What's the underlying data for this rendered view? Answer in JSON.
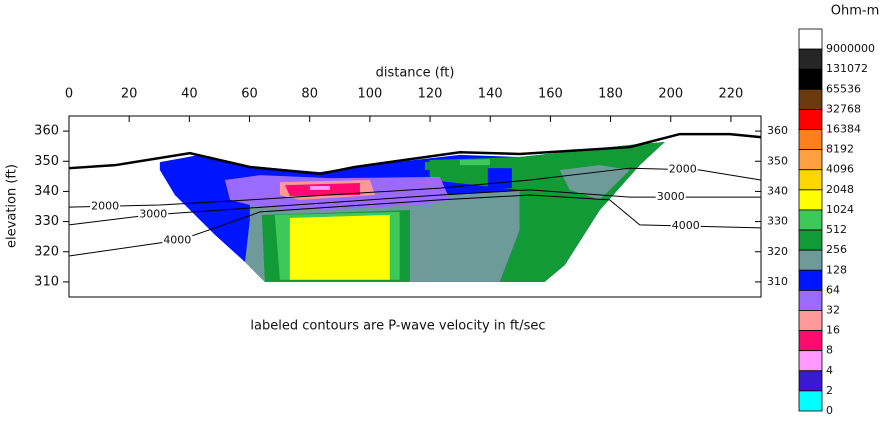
{
  "chart_data": {
    "type": "contour",
    "x_label": "distance (ft)",
    "y_label": "elevation (ft)",
    "annotation": "labeled contours are P-wave velocity in ft/sec",
    "xlim": [
      0,
      230
    ],
    "xticks": [
      0,
      20,
      40,
      60,
      80,
      100,
      120,
      140,
      160,
      180,
      200,
      220
    ],
    "ylim": [
      305,
      365
    ],
    "yticks": [
      310,
      320,
      330,
      340,
      350,
      360
    ],
    "colorbar": {
      "title": "Ohm-m",
      "levels": [
        9000000,
        131072,
        65536,
        32768,
        16384,
        8192,
        4096,
        2048,
        1024,
        512,
        256,
        128,
        64,
        32,
        16,
        8,
        4,
        2,
        0
      ],
      "colors": [
        "#ffffff",
        "#262626",
        "#000000",
        "#6b3a0f",
        "#ff0000",
        "#ff7f1e",
        "#ffa040",
        "#ffd700",
        "#ffff00",
        "#3dc85a",
        "#129a37",
        "#6e9a9a",
        "#0015ff",
        "#9b6bff",
        "#ff9999",
        "#ff0a6f",
        "#ff99ff",
        "#3a1ad0",
        "#00ffff"
      ]
    },
    "regions": [
      {
        "color": "#0015ff",
        "points": [
          [
            30.2,
            349.7
          ],
          [
            43.5,
            352.1
          ],
          [
            60.1,
            348.4
          ],
          [
            83.4,
            346.4
          ],
          [
            96.7,
            348.4
          ],
          [
            129.9,
            352.1
          ],
          [
            149.8,
            351.4
          ],
          [
            186.4,
            355.4
          ],
          [
            198,
            356.4
          ],
          [
            189.7,
            348.7
          ],
          [
            176.4,
            333.8
          ],
          [
            164.8,
            315.6
          ],
          [
            158.1,
            310
          ],
          [
            65.1,
            310
          ],
          [
            58.5,
            316.6
          ],
          [
            48.5,
            325.6
          ],
          [
            35.2,
            338.8
          ],
          [
            30.2,
            347.1
          ]
        ]
      },
      {
        "color": "#129a37",
        "points": [
          [
            119.9,
            350.4
          ],
          [
            149.8,
            351.4
          ],
          [
            186.4,
            355.4
          ],
          [
            198,
            356.4
          ],
          [
            189.7,
            348.7
          ],
          [
            176.4,
            333.8
          ],
          [
            164.8,
            315.6
          ],
          [
            158.1,
            310
          ],
          [
            143.2,
            310
          ],
          [
            149.8,
            327.2
          ],
          [
            149.8,
            340.5
          ],
          [
            119.9,
            343.8
          ]
        ]
      },
      {
        "color": "#6e9a9a",
        "points": [
          [
            163.1,
            347.1
          ],
          [
            176.4,
            348.7
          ],
          [
            186.4,
            347.1
          ],
          [
            176.4,
            337.2
          ],
          [
            166.4,
            340.5
          ]
        ]
      },
      {
        "color": "#6e9a9a",
        "points": [
          [
            60.1,
            337.2
          ],
          [
            126.6,
            338.8
          ],
          [
            149.8,
            340.5
          ],
          [
            149.8,
            327.2
          ],
          [
            143.2,
            310
          ],
          [
            65.1,
            310
          ],
          [
            58.5,
            316.6
          ],
          [
            60.1,
            330.5
          ]
        ]
      },
      {
        "color": "#129a37",
        "points": [
          [
            64.1,
            332.2
          ],
          [
            113.3,
            333.8
          ],
          [
            113.3,
            310
          ],
          [
            65.1,
            310
          ]
        ]
      },
      {
        "color": "#3dc85a",
        "points": [
          [
            68.4,
            332.2
          ],
          [
            109.9,
            333.2
          ],
          [
            109.9,
            310.7
          ],
          [
            70.1,
            310.7
          ]
        ]
      },
      {
        "color": "#ffff00",
        "points": [
          [
            73.4,
            331.2
          ],
          [
            106.6,
            332.2
          ],
          [
            106.6,
            310.7
          ],
          [
            73.4,
            310.7
          ]
        ]
      },
      {
        "color": "#9b6bff",
        "points": [
          [
            51.8,
            343.8
          ],
          [
            63.5,
            345.4
          ],
          [
            86.7,
            344.4
          ],
          [
            123.3,
            344.8
          ],
          [
            126.6,
            337.2
          ],
          [
            116.6,
            335.5
          ],
          [
            96.7,
            334.5
          ],
          [
            73.4,
            333.8
          ],
          [
            60.1,
            335.5
          ],
          [
            53.5,
            337.2
          ]
        ]
      },
      {
        "color": "#ff9999",
        "points": [
          [
            70.1,
            343.1
          ],
          [
            100,
            343.8
          ],
          [
            101.7,
            338.8
          ],
          [
            76.7,
            337.2
          ],
          [
            70.1,
            338.8
          ]
        ]
      },
      {
        "color": "#ff0a6f",
        "points": [
          [
            71.8,
            342.1
          ],
          [
            96.7,
            342.8
          ],
          [
            96.7,
            338.8
          ],
          [
            73.4,
            338.5
          ]
        ]
      },
      {
        "color": "#ff99ff",
        "points": [
          [
            80.1,
            341.8
          ],
          [
            86.7,
            341.8
          ],
          [
            86.7,
            340.5
          ],
          [
            80.1,
            340.5
          ]
        ]
      },
      {
        "color": "#129a37",
        "points": [
          [
            118.3,
            349.7
          ],
          [
            149.8,
            350.4
          ],
          [
            149.8,
            347.7
          ],
          [
            118.3,
            347.1
          ]
        ]
      },
      {
        "color": "#3dc85a",
        "points": [
          [
            129.9,
            350.4
          ],
          [
            139.9,
            350.7
          ],
          [
            139.9,
            348.7
          ],
          [
            129.9,
            348.7
          ]
        ]
      },
      {
        "color": "#0015ff",
        "points": [
          [
            139.2,
            347.7
          ],
          [
            147.2,
            347.7
          ],
          [
            147.2,
            341.1
          ],
          [
            139.2,
            341.1
          ]
        ]
      }
    ],
    "topography": [
      [
        0,
        347.7
      ],
      [
        15.3,
        348.7
      ],
      [
        40.2,
        352.7
      ],
      [
        60.1,
        348.1
      ],
      [
        83.4,
        345.8
      ],
      [
        95,
        348.1
      ],
      [
        129.9,
        353
      ],
      [
        149.8,
        352.4
      ],
      [
        186.4,
        354.7
      ],
      [
        203,
        359
      ],
      [
        219.6,
        359
      ],
      [
        229.9,
        358
      ]
    ],
    "contours": [
      {
        "label": 2000,
        "points": [
          [
            0,
            334.8
          ],
          [
            30.2,
            335.5
          ],
          [
            60.1,
            337.2
          ],
          [
            123.3,
            341.1
          ],
          [
            153.2,
            343.8
          ],
          [
            186.4,
            347.7
          ],
          [
            209.6,
            347.1
          ],
          [
            229.9,
            343.8
          ]
        ]
      },
      {
        "label": 3000,
        "points": [
          [
            0,
            328.9
          ],
          [
            26.9,
            332.2
          ],
          [
            60.1,
            334.5
          ],
          [
            123.3,
            338.8
          ],
          [
            153.2,
            340.5
          ],
          [
            186.4,
            338.1
          ],
          [
            229.9,
            338.1
          ]
        ]
      },
      {
        "label": 4000,
        "points": [
          [
            0,
            318.6
          ],
          [
            36.9,
            323.9
          ],
          [
            48.5,
            327.9
          ],
          [
            63.5,
            333.2
          ],
          [
            123.3,
            337.2
          ],
          [
            153.2,
            338.8
          ],
          [
            179.7,
            337.2
          ],
          [
            189.7,
            328.9
          ],
          [
            229.9,
            327.9
          ]
        ]
      }
    ]
  }
}
